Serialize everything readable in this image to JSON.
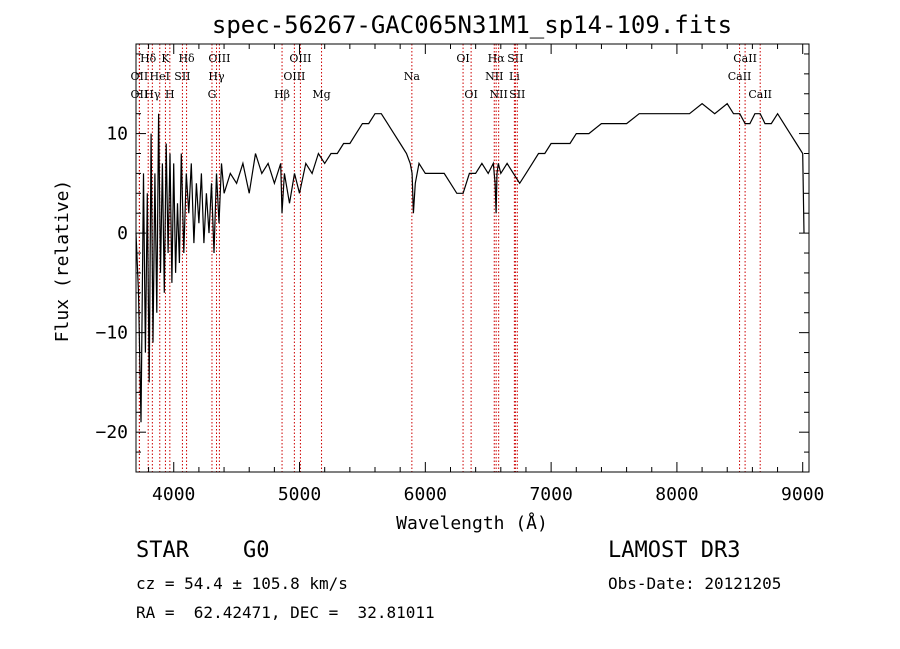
{
  "chart_data": {
    "type": "line",
    "title": "spec-56267-GAC065N31M1_sp14-109.fits",
    "xlabel": "Wavelength (Å)",
    "ylabel": "Flux (relative)",
    "xlim": [
      3700,
      9050
    ],
    "ylim": [
      -24,
      19
    ],
    "x_ticks": [
      4000,
      5000,
      6000,
      7000,
      8000,
      9000
    ],
    "y_ticks": [
      -20,
      -10,
      0,
      10
    ],
    "x_tick_labels": [
      "4000",
      "5000",
      "6000",
      "7000",
      "8000",
      "9000"
    ],
    "y_tick_labels": [
      "−20",
      "−10",
      "0",
      "10"
    ],
    "grid": false,
    "line_color": "#000000",
    "marker_color": "#cc0000",
    "series": [
      {
        "name": "flux",
        "x": [
          3700,
          3720,
          3740,
          3760,
          3775,
          3790,
          3805,
          3820,
          3835,
          3850,
          3865,
          3880,
          3895,
          3910,
          3925,
          3940,
          3955,
          3970,
          3985,
          4000,
          4015,
          4030,
          4045,
          4060,
          4080,
          4100,
          4120,
          4140,
          4160,
          4180,
          4200,
          4220,
          4240,
          4260,
          4280,
          4300,
          4320,
          4340,
          4360,
          4380,
          4400,
          4450,
          4500,
          4550,
          4600,
          4650,
          4700,
          4750,
          4800,
          4850,
          4861,
          4880,
          4920,
          4960,
          5000,
          5050,
          5100,
          5150,
          5200,
          5250,
          5300,
          5350,
          5400,
          5450,
          5500,
          5550,
          5600,
          5650,
          5700,
          5750,
          5800,
          5850,
          5880,
          5895,
          5905,
          5920,
          5950,
          6000,
          6050,
          6100,
          6150,
          6200,
          6250,
          6300,
          6350,
          6400,
          6450,
          6500,
          6540,
          6555,
          6563,
          6570,
          6580,
          6600,
          6650,
          6700,
          6750,
          6800,
          6850,
          6900,
          6950,
          7000,
          7050,
          7100,
          7150,
          7200,
          7250,
          7300,
          7400,
          7500,
          7600,
          7700,
          7800,
          7900,
          8000,
          8100,
          8200,
          8300,
          8400,
          8450,
          8500,
          8542,
          8580,
          8620,
          8662,
          8700,
          8750,
          8800,
          8850,
          8900,
          8950,
          9000,
          9010
        ],
        "y": [
          0,
          -6,
          -19,
          6,
          -12,
          4,
          -15,
          10,
          -11,
          6,
          -8,
          12,
          -4,
          7,
          -6,
          9,
          -2,
          8,
          -5,
          7,
          -4,
          3,
          -3,
          8,
          -2,
          6,
          2,
          7,
          -1,
          5,
          1,
          6,
          -1,
          4,
          0,
          5,
          -2,
          6,
          1,
          7,
          4,
          6,
          5,
          7,
          4,
          8,
          6,
          7,
          5,
          7,
          2,
          6,
          3,
          6,
          4,
          7,
          6,
          8,
          7,
          8,
          8,
          9,
          9,
          10,
          11,
          11,
          12,
          12,
          11,
          10,
          9,
          8,
          7,
          6,
          2,
          5,
          7,
          6,
          6,
          6,
          6,
          5,
          4,
          4,
          6,
          6,
          7,
          6,
          7,
          5,
          2,
          6,
          7,
          6,
          7,
          6,
          5,
          6,
          7,
          8,
          8,
          9,
          9,
          9,
          9,
          10,
          10,
          10,
          11,
          11,
          11,
          12,
          12,
          12,
          12,
          12,
          13,
          12,
          13,
          12,
          12,
          11,
          11,
          12,
          12,
          11,
          11,
          12,
          11,
          10,
          9,
          8,
          0
        ]
      }
    ],
    "line_markers": [
      {
        "label": "Hδ",
        "row": 0,
        "x": 3797
      },
      {
        "label": "OII",
        "row": 1,
        "x": 3727
      },
      {
        "label": "OII",
        "row": 2,
        "x": 3727
      },
      {
        "label": "Hγ",
        "row": 2,
        "x": 3830
      },
      {
        "label": "K",
        "row": 0,
        "x": 3934
      },
      {
        "label": "HeI",
        "row": 1,
        "x": 3889
      },
      {
        "label": "SII",
        "row": 1,
        "x": 4069
      },
      {
        "label": "H",
        "row": 2,
        "x": 3969
      },
      {
        "label": "Hδ",
        "row": 0,
        "x": 4102
      },
      {
        "label": "OIII",
        "row": 0,
        "x": 4363
      },
      {
        "label": "Hγ",
        "row": 1,
        "x": 4340
      },
      {
        "label": "G",
        "row": 2,
        "x": 4304
      },
      {
        "label": "Hβ",
        "row": 2,
        "x": 4861
      },
      {
        "label": "OIII",
        "row": 0,
        "x": 5007
      },
      {
        "label": "OIII",
        "row": 1,
        "x": 4959
      },
      {
        "label": "Mg",
        "row": 2,
        "x": 5175
      },
      {
        "label": "Na",
        "row": 1,
        "x": 5893
      },
      {
        "label": "OI",
        "row": 0,
        "x": 6300
      },
      {
        "label": "OI",
        "row": 2,
        "x": 6364
      },
      {
        "label": "Hα",
        "row": 0,
        "x": 6563
      },
      {
        "label": "SII",
        "row": 0,
        "x": 6716
      },
      {
        "label": "NII",
        "row": 1,
        "x": 6548
      },
      {
        "label": "Li",
        "row": 1,
        "x": 6708
      },
      {
        "label": "NII",
        "row": 2,
        "x": 6583
      },
      {
        "label": "SII",
        "row": 2,
        "x": 6731
      },
      {
        "label": "CaII",
        "row": 0,
        "x": 8542
      },
      {
        "label": "CaII",
        "row": 1,
        "x": 8498
      },
      {
        "label": "CaII",
        "row": 2,
        "x": 8662
      }
    ]
  },
  "info": {
    "class_label": "STAR",
    "subclass_label": "G0",
    "survey_label": "LAMOST DR3",
    "cz_text": "cz = 54.4 ± 105.8 km/s",
    "obs_date_text": "Obs-Date: 20121205",
    "coords_text": "RA =  62.42471, DEC =  32.81011"
  }
}
